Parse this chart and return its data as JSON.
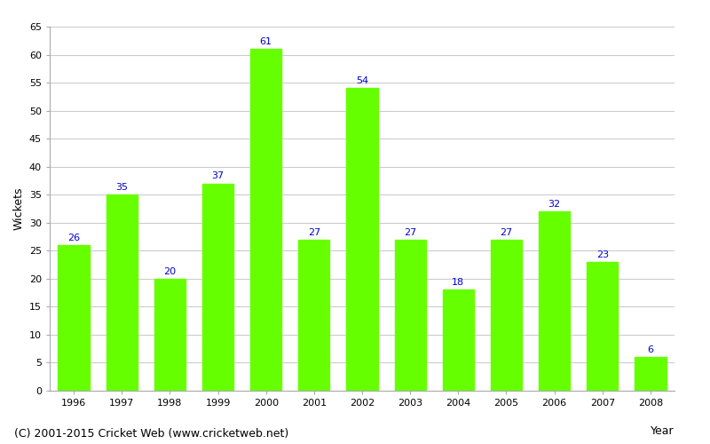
{
  "years": [
    1996,
    1997,
    1998,
    1999,
    2000,
    2001,
    2002,
    2003,
    2004,
    2005,
    2006,
    2007,
    2008
  ],
  "wickets": [
    26,
    35,
    20,
    37,
    61,
    27,
    54,
    27,
    18,
    27,
    32,
    23,
    6
  ],
  "bar_color": "#66ff00",
  "bar_edge_color": "#66ff00",
  "label_color": "#0000cc",
  "label_fontsize": 8,
  "xlabel": "Year",
  "ylabel": "Wickets",
  "ylim": [
    0,
    65
  ],
  "yticks": [
    0,
    5,
    10,
    15,
    20,
    25,
    30,
    35,
    40,
    45,
    50,
    55,
    60,
    65
  ],
  "background_color": "#ffffff",
  "grid_color": "#cccccc",
  "footer": "(C) 2001-2015 Cricket Web (www.cricketweb.net)",
  "footer_fontsize": 9,
  "footer_color": "#000000",
  "tick_fontsize": 8,
  "axis_label_fontsize": 9
}
